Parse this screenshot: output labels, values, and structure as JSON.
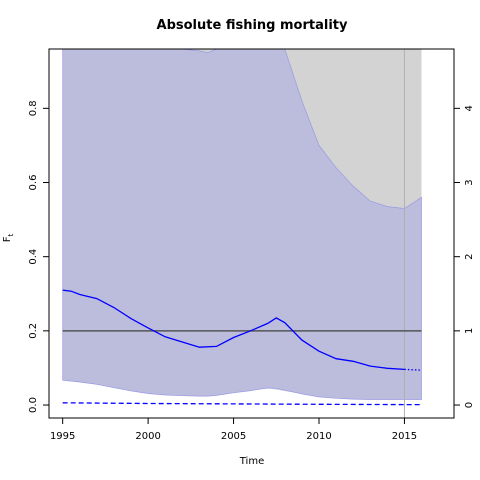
{
  "chart_data": {
    "type": "line",
    "title": "Absolute fishing mortality",
    "xlabel": "Time",
    "ylabel": "F",
    "ylabel_sub": "t",
    "xlim": [
      1994.2,
      2017.9
    ],
    "ylim": [
      -0.035,
      0.96
    ],
    "x_ticks": [
      1995,
      2000,
      2005,
      2010,
      2015
    ],
    "y_ticks": [
      0.0,
      0.2,
      0.4,
      0.6,
      0.8
    ],
    "y2_ticks": [
      0,
      1,
      2,
      3,
      4
    ],
    "y2_scale": 0.2,
    "x_tick_labels": [
      "1995",
      "2000",
      "2005",
      "2010",
      "2015"
    ],
    "y_tick_labels": [
      "0.0",
      "0.2",
      "0.4",
      "0.6",
      "0.8"
    ],
    "y2_tick_labels": [
      "0",
      "1",
      "2",
      "3",
      "4"
    ],
    "fmsy": 0.2,
    "last_observed_year": 2015,
    "colors": {
      "grey_band": "#d3d3d3",
      "blue_band": "#bcbcdd",
      "blue_band_edge": "#9a9ae6",
      "estimate": "#0000ff",
      "fmsy_line": "#555555"
    },
    "grey_band": {
      "x": [
        1995,
        1997,
        1999,
        2001,
        2003,
        2005,
        2007,
        2009,
        2011,
        2013,
        2015,
        2016
      ],
      "lower": [
        0.067,
        0.055,
        0.04,
        0.03,
        0.025,
        0.033,
        0.045,
        0.03,
        0.022,
        0.02,
        0.02,
        0.02
      ],
      "upper": [
        0.96,
        0.96,
        0.96,
        0.96,
        0.96,
        0.96,
        0.96,
        0.96,
        0.96,
        0.96,
        0.96,
        0.96
      ]
    },
    "blue_band": {
      "x": [
        1995,
        1996,
        1997,
        1998,
        1999,
        2000,
        2001,
        2002,
        2003,
        2003.5,
        2004,
        2005,
        2006,
        2007,
        2007.5,
        2008,
        2009,
        2010,
        2011,
        2012,
        2013,
        2014,
        2015,
        2016
      ],
      "lower": [
        0.067,
        0.062,
        0.056,
        0.047,
        0.038,
        0.031,
        0.027,
        0.025,
        0.024,
        0.024,
        0.026,
        0.033,
        0.039,
        0.046,
        0.045,
        0.04,
        0.03,
        0.022,
        0.018,
        0.016,
        0.015,
        0.015,
        0.015,
        0.015
      ],
      "upper": [
        0.96,
        0.96,
        0.96,
        0.96,
        0.96,
        0.96,
        0.96,
        0.96,
        0.955,
        0.95,
        0.96,
        0.96,
        0.96,
        0.96,
        0.96,
        0.96,
        0.82,
        0.7,
        0.64,
        0.59,
        0.55,
        0.535,
        0.53,
        0.56
      ]
    },
    "series": [
      {
        "type": "solid",
        "x": [
          1995,
          1995.5,
          1996,
          1997,
          1998,
          1999,
          2000,
          2001,
          2002,
          2003,
          2004,
          2005,
          2006,
          2007,
          2007.5,
          2008,
          2009,
          2010,
          2011,
          2012,
          2013,
          2014,
          2015
        ],
        "y": [
          0.31,
          0.307,
          0.298,
          0.287,
          0.263,
          0.233,
          0.208,
          0.184,
          0.17,
          0.156,
          0.158,
          0.182,
          0.2,
          0.22,
          0.235,
          0.222,
          0.175,
          0.145,
          0.125,
          0.118,
          0.105,
          0.099,
          0.096
        ]
      },
      {
        "type": "dotted",
        "x": [
          2015,
          2016
        ],
        "y": [
          0.096,
          0.094
        ]
      },
      {
        "type": "dashed",
        "x": [
          1995,
          2000,
          2005,
          2010,
          2015,
          2016
        ],
        "y": [
          0.006,
          0.004,
          0.003,
          0.002,
          0.001,
          0.001
        ]
      }
    ]
  }
}
